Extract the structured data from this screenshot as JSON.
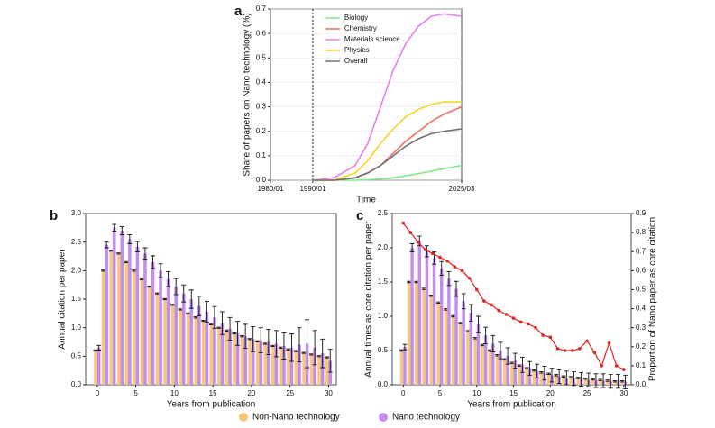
{
  "chart_data": [
    {
      "type": "line",
      "label": "a",
      "xlabel": "Time",
      "ylabel": "Share of papers on Nano technology (%)",
      "xlim": [
        1980,
        2025.17
      ],
      "xticks": [
        {
          "value": 1980,
          "label": "1980/01"
        },
        {
          "value": 1990,
          "label": "1990/01"
        },
        {
          "value": 2025.17,
          "label": "2025/03"
        }
      ],
      "ylim": [
        0,
        0.7
      ],
      "yticks": [
        {
          "value": 0,
          "label": "0.0"
        },
        0.1,
        0.2,
        0.3,
        0.4,
        0.5,
        0.6,
        0.7
      ],
      "grid": true,
      "vline": 1990,
      "legend": "upper left",
      "x": [
        1990,
        1995,
        2000,
        2003,
        2006,
        2009,
        2012,
        2015,
        2018,
        2021,
        2025.17
      ],
      "series": [
        {
          "name": "Biology",
          "color": "#7ee88a",
          "values": [
            0,
            0,
            0,
            0.002,
            0.005,
            0.01,
            0.018,
            0.027,
            0.037,
            0.047,
            0.06
          ]
        },
        {
          "name": "Chemistry",
          "color": "#f07060",
          "values": [
            0,
            0,
            0.01,
            0.03,
            0.06,
            0.11,
            0.16,
            0.2,
            0.24,
            0.27,
            0.3
          ]
        },
        {
          "name": "Materials science",
          "color": "#e880e8",
          "values": [
            0,
            0.01,
            0.06,
            0.15,
            0.3,
            0.45,
            0.56,
            0.63,
            0.67,
            0.68,
            0.67
          ]
        },
        {
          "name": "Physics",
          "color": "#f2d62a",
          "values": [
            0,
            0,
            0.03,
            0.08,
            0.15,
            0.21,
            0.26,
            0.29,
            0.31,
            0.32,
            0.32
          ]
        },
        {
          "name": "Overall",
          "color": "#707070",
          "values": [
            0,
            0,
            0.01,
            0.03,
            0.06,
            0.1,
            0.14,
            0.17,
            0.19,
            0.2,
            0.21
          ]
        }
      ]
    },
    {
      "type": "bar",
      "label": "b",
      "xlabel": "Years from publication",
      "ylabel": "Annual citation per paper",
      "xlim": [
        -1.5,
        31
      ],
      "xticks": [
        0,
        5,
        10,
        15,
        20,
        25,
        30
      ],
      "ylim": [
        0,
        3
      ],
      "yticks": [
        {
          "value": 0,
          "label": "0.0"
        },
        0.5,
        {
          "value": 1,
          "label": "1.0"
        },
        1.5,
        {
          "value": 2,
          "label": "2.0"
        },
        2.5,
        {
          "value": 3,
          "label": "3.0"
        }
      ],
      "grid": false,
      "x": [
        0,
        1,
        2,
        3,
        4,
        5,
        6,
        7,
        8,
        9,
        10,
        11,
        12,
        13,
        14,
        15,
        16,
        17,
        18,
        19,
        20,
        21,
        22,
        23,
        24,
        25,
        26,
        27,
        28,
        29,
        30
      ],
      "series": [
        {
          "name": "Non-Nano technology",
          "color": "#f8c778",
          "values": [
            0.6,
            2.0,
            2.35,
            2.3,
            2.15,
            2.0,
            1.85,
            1.72,
            1.6,
            1.5,
            1.4,
            1.32,
            1.25,
            1.18,
            1.12,
            1.06,
            1.0,
            0.95,
            0.9,
            0.85,
            0.8,
            0.76,
            0.72,
            0.68,
            0.65,
            0.62,
            0.59,
            0.56,
            0.53,
            0.5,
            0.48
          ],
          "errors": [
            0.01,
            0.01,
            0.01,
            0.01,
            0.01,
            0.01,
            0.01,
            0.01,
            0.01,
            0.01,
            0.01,
            0.01,
            0.01,
            0.01,
            0.01,
            0.01,
            0.01,
            0.01,
            0.01,
            0.01,
            0.01,
            0.01,
            0.01,
            0.01,
            0.01,
            0.01,
            0.01,
            0.01,
            0.01,
            0.01,
            0.01
          ]
        },
        {
          "name": "Nano technology",
          "color": "#c38ded",
          "values": [
            0.65,
            2.45,
            2.75,
            2.7,
            2.55,
            2.42,
            2.3,
            2.15,
            2.0,
            1.85,
            1.72,
            1.6,
            1.5,
            1.38,
            1.28,
            1.18,
            1.08,
            0.98,
            0.9,
            0.85,
            0.8,
            0.78,
            0.75,
            0.72,
            0.68,
            0.65,
            0.7,
            0.72,
            0.65,
            0.55,
            0.42
          ],
          "errors": [
            0.04,
            0.05,
            0.06,
            0.07,
            0.08,
            0.09,
            0.1,
            0.11,
            0.12,
            0.13,
            0.14,
            0.15,
            0.16,
            0.17,
            0.18,
            0.19,
            0.2,
            0.2,
            0.21,
            0.21,
            0.22,
            0.22,
            0.22,
            0.23,
            0.23,
            0.24,
            0.3,
            0.42,
            0.3,
            0.25,
            0.2
          ]
        }
      ]
    },
    {
      "type": "bar",
      "label": "c",
      "xlabel": "Years from publication",
      "ylabel": "Annual times as core citation per paper",
      "y2label": "Proportion of Nano paper as core citation",
      "xlim": [
        -1.5,
        31
      ],
      "xticks": [
        0,
        5,
        10,
        15,
        20,
        25,
        30
      ],
      "ylim": [
        0,
        2.5
      ],
      "yticks": [
        {
          "value": 0,
          "label": "0.0"
        },
        0.5,
        {
          "value": 1,
          "label": "1.0"
        },
        1.5,
        {
          "value": 2,
          "label": "2.0"
        },
        2.5
      ],
      "y2lim": [
        0,
        0.9
      ],
      "y2ticks": [
        {
          "value": 0,
          "label": "0.0"
        },
        0.1,
        0.2,
        0.3,
        0.4,
        0.5,
        0.6,
        0.7,
        0.8,
        0.9
      ],
      "grid": false,
      "x": [
        0,
        1,
        2,
        3,
        4,
        5,
        6,
        7,
        8,
        9,
        10,
        11,
        12,
        13,
        14,
        15,
        16,
        17,
        18,
        19,
        20,
        21,
        22,
        23,
        24,
        25,
        26,
        27,
        28,
        29,
        30
      ],
      "series": [
        {
          "color": "#f8c778",
          "values": [
            0.5,
            1.5,
            1.5,
            1.4,
            1.3,
            1.2,
            1.1,
            1.0,
            0.9,
            0.78,
            0.68,
            0.58,
            0.5,
            0.43,
            0.37,
            0.32,
            0.28,
            0.24,
            0.21,
            0.18,
            0.16,
            0.14,
            0.12,
            0.11,
            0.1,
            0.09,
            0.08,
            0.07,
            0.06,
            0.05,
            0.05
          ],
          "errors": [
            0.01,
            0.01,
            0.01,
            0.01,
            0.01,
            0.01,
            0.01,
            0.01,
            0.01,
            0.01,
            0.01,
            0.01,
            0.01,
            0.01,
            0.01,
            0.01,
            0.01,
            0.01,
            0.01,
            0.01,
            0.01,
            0.01,
            0.01,
            0.01,
            0.01,
            0.01,
            0.01,
            0.01,
            0.01,
            0.01,
            0.01
          ]
        },
        {
          "color": "#c38ded",
          "values": [
            0.55,
            2.0,
            2.1,
            1.95,
            1.85,
            1.7,
            1.55,
            1.4,
            1.22,
            1.05,
            0.88,
            0.72,
            0.6,
            0.5,
            0.42,
            0.35,
            0.29,
            0.24,
            0.2,
            0.17,
            0.14,
            0.12,
            0.1,
            0.09,
            0.08,
            0.07,
            0.06,
            0.06,
            0.05,
            0.05,
            0.04
          ],
          "errors": [
            0.04,
            0.06,
            0.07,
            0.08,
            0.09,
            0.1,
            0.1,
            0.11,
            0.11,
            0.12,
            0.12,
            0.12,
            0.12,
            0.12,
            0.12,
            0.11,
            0.11,
            0.1,
            0.1,
            0.1,
            0.1,
            0.1,
            0.1,
            0.1,
            0.1,
            0.1,
            0.1,
            0.1,
            0.1,
            0.1,
            0.1
          ]
        },
        {
          "color": "#e02424",
          "axis": "y2",
          "values": [
            0.85,
            0.8,
            0.75,
            0.71,
            0.69,
            0.67,
            0.65,
            0.62,
            0.6,
            0.56,
            0.5,
            0.44,
            0.42,
            0.39,
            0.37,
            0.35,
            0.33,
            0.32,
            0.3,
            0.26,
            0.25,
            0.19,
            0.18,
            0.18,
            0.19,
            0.23,
            0.17,
            0.1,
            0.22,
            0.1,
            0.08
          ]
        }
      ]
    }
  ]
}
